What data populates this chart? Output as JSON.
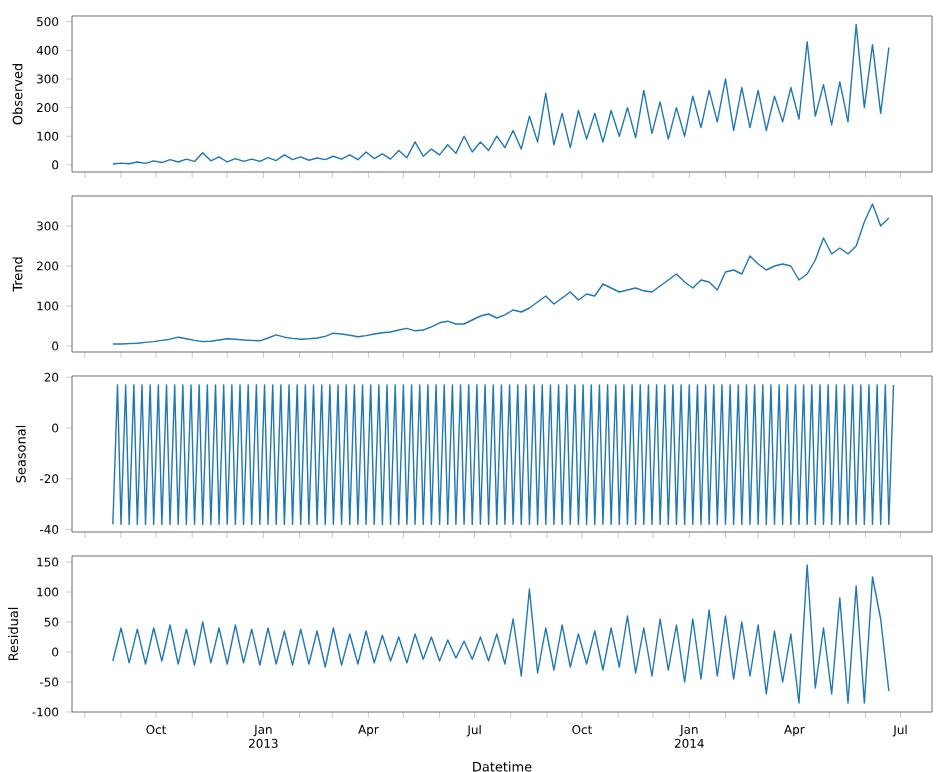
{
  "chart_data": [
    {
      "type": "line",
      "ylabel": "Observed",
      "tick_labels": "y",
      "xlim": [
        "2012-07-21",
        "2014-07-28"
      ],
      "ylim": [
        -25,
        520
      ],
      "yticks": [
        0,
        100,
        200,
        300,
        400,
        500
      ],
      "xticks": [
        "2012-08-01",
        "2012-09-01",
        "2012-10-01",
        "2012-11-01",
        "2012-12-01",
        "2013-01-01",
        "2013-02-01",
        "2013-03-01",
        "2013-04-01",
        "2013-05-01",
        "2013-06-01",
        "2013-07-01",
        "2013-08-01",
        "2013-09-01",
        "2013-10-01",
        "2013-11-01",
        "2013-12-01",
        "2014-01-01",
        "2014-02-01",
        "2014-03-01",
        "2014-04-01",
        "2014-05-01",
        "2014-06-01",
        "2014-07-01"
      ],
      "x": [
        "2012-08-25",
        "2012-09-01",
        "2012-09-08",
        "2012-09-15",
        "2012-09-22",
        "2012-09-29",
        "2012-10-06",
        "2012-10-13",
        "2012-10-20",
        "2012-10-27",
        "2012-11-03",
        "2012-11-10",
        "2012-11-17",
        "2012-11-24",
        "2012-12-01",
        "2012-12-08",
        "2012-12-15",
        "2012-12-22",
        "2012-12-29",
        "2013-01-05",
        "2013-01-12",
        "2013-01-19",
        "2013-01-26",
        "2013-02-02",
        "2013-02-09",
        "2013-02-16",
        "2013-02-23",
        "2013-03-02",
        "2013-03-09",
        "2013-03-16",
        "2013-03-23",
        "2013-03-30",
        "2013-04-06",
        "2013-04-13",
        "2013-04-20",
        "2013-04-27",
        "2013-05-04",
        "2013-05-11",
        "2013-05-18",
        "2013-05-25",
        "2013-06-01",
        "2013-06-08",
        "2013-06-15",
        "2013-06-22",
        "2013-06-29",
        "2013-07-06",
        "2013-07-13",
        "2013-07-20",
        "2013-07-27",
        "2013-08-03",
        "2013-08-10",
        "2013-08-17",
        "2013-08-24",
        "2013-08-31",
        "2013-09-07",
        "2013-09-14",
        "2013-09-21",
        "2013-09-28",
        "2013-10-05",
        "2013-10-12",
        "2013-10-19",
        "2013-10-26",
        "2013-11-02",
        "2013-11-09",
        "2013-11-16",
        "2013-11-23",
        "2013-11-30",
        "2013-12-07",
        "2013-12-14",
        "2013-12-21",
        "2013-12-28",
        "2014-01-04",
        "2014-01-11",
        "2014-01-18",
        "2014-01-25",
        "2014-02-01",
        "2014-02-08",
        "2014-02-15",
        "2014-02-22",
        "2014-03-01",
        "2014-03-08",
        "2014-03-15",
        "2014-03-22",
        "2014-03-29",
        "2014-04-05",
        "2014-04-12",
        "2014-04-19",
        "2014-04-26",
        "2014-05-03",
        "2014-05-10",
        "2014-05-17",
        "2014-05-24",
        "2014-05-31",
        "2014-06-07",
        "2014-06-14",
        "2014-06-21"
      ],
      "series": [
        {
          "color": "#1f77b4",
          "values": [
            3,
            6,
            4,
            10,
            5,
            14,
            8,
            18,
            10,
            20,
            12,
            42,
            14,
            28,
            10,
            22,
            12,
            20,
            12,
            25,
            15,
            35,
            18,
            28,
            16,
            24,
            18,
            30,
            20,
            35,
            18,
            45,
            22,
            38,
            20,
            50,
            25,
            80,
            30,
            55,
            35,
            70,
            40,
            100,
            45,
            80,
            50,
            100,
            60,
            120,
            55,
            170,
            80,
            250,
            70,
            180,
            60,
            190,
            90,
            180,
            80,
            190,
            100,
            200,
            95,
            260,
            110,
            220,
            90,
            200,
            100,
            240,
            130,
            260,
            150,
            300,
            120,
            270,
            130,
            260,
            120,
            240,
            150,
            270,
            160,
            430,
            170,
            280,
            140,
            290,
            150,
            490,
            200,
            420,
            180,
            410
          ]
        }
      ]
    },
    {
      "type": "line",
      "ylabel": "Trend",
      "tick_labels": "y",
      "xlim": [
        "2012-07-21",
        "2014-07-28"
      ],
      "ylim": [
        -15,
        375
      ],
      "yticks": [
        0,
        100,
        200,
        300
      ],
      "xticks": [
        "2012-08-01",
        "2012-09-01",
        "2012-10-01",
        "2012-11-01",
        "2012-12-01",
        "2013-01-01",
        "2013-02-01",
        "2013-03-01",
        "2013-04-01",
        "2013-05-01",
        "2013-06-01",
        "2013-07-01",
        "2013-08-01",
        "2013-09-01",
        "2013-10-01",
        "2013-11-01",
        "2013-12-01",
        "2014-01-01",
        "2014-02-01",
        "2014-03-01",
        "2014-04-01",
        "2014-05-01",
        "2014-06-01",
        "2014-07-01"
      ],
      "x": [
        "2012-08-25",
        "2012-09-01",
        "2012-09-08",
        "2012-09-15",
        "2012-09-22",
        "2012-09-29",
        "2012-10-06",
        "2012-10-13",
        "2012-10-20",
        "2012-10-27",
        "2012-11-03",
        "2012-11-10",
        "2012-11-17",
        "2012-11-24",
        "2012-12-01",
        "2012-12-08",
        "2012-12-15",
        "2012-12-22",
        "2012-12-29",
        "2013-01-05",
        "2013-01-12",
        "2013-01-19",
        "2013-01-26",
        "2013-02-02",
        "2013-02-09",
        "2013-02-16",
        "2013-02-23",
        "2013-03-02",
        "2013-03-09",
        "2013-03-16",
        "2013-03-23",
        "2013-03-30",
        "2013-04-06",
        "2013-04-13",
        "2013-04-20",
        "2013-04-27",
        "2013-05-04",
        "2013-05-11",
        "2013-05-18",
        "2013-05-25",
        "2013-06-01",
        "2013-06-08",
        "2013-06-15",
        "2013-06-22",
        "2013-06-29",
        "2013-07-06",
        "2013-07-13",
        "2013-07-20",
        "2013-07-27",
        "2013-08-03",
        "2013-08-10",
        "2013-08-17",
        "2013-08-24",
        "2013-08-31",
        "2013-09-07",
        "2013-09-14",
        "2013-09-21",
        "2013-09-28",
        "2013-10-05",
        "2013-10-12",
        "2013-10-19",
        "2013-10-26",
        "2013-11-02",
        "2013-11-09",
        "2013-11-16",
        "2013-11-23",
        "2013-11-30",
        "2013-12-07",
        "2013-12-14",
        "2013-12-21",
        "2013-12-28",
        "2014-01-04",
        "2014-01-11",
        "2014-01-18",
        "2014-01-25",
        "2014-02-01",
        "2014-02-08",
        "2014-02-15",
        "2014-02-22",
        "2014-03-01",
        "2014-03-08",
        "2014-03-15",
        "2014-03-22",
        "2014-03-29",
        "2014-04-05",
        "2014-04-12",
        "2014-04-19",
        "2014-04-26",
        "2014-05-03",
        "2014-05-10",
        "2014-05-17",
        "2014-05-24",
        "2014-05-31",
        "2014-06-07",
        "2014-06-14",
        "2014-06-21"
      ],
      "series": [
        {
          "color": "#1f77b4",
          "values": [
            5,
            5,
            6,
            7,
            9,
            11,
            14,
            17,
            22,
            18,
            14,
            11,
            12,
            15,
            18,
            17,
            15,
            14,
            13,
            20,
            28,
            22,
            19,
            17,
            18,
            20,
            24,
            32,
            30,
            27,
            23,
            26,
            30,
            33,
            35,
            40,
            44,
            38,
            40,
            48,
            58,
            62,
            55,
            55,
            65,
            75,
            80,
            70,
            78,
            90,
            85,
            95,
            110,
            125,
            105,
            120,
            135,
            115,
            130,
            125,
            155,
            145,
            135,
            140,
            145,
            138,
            135,
            150,
            165,
            180,
            160,
            145,
            165,
            160,
            140,
            185,
            190,
            180,
            225,
            205,
            190,
            200,
            205,
            200,
            165,
            180,
            215,
            270,
            230,
            245,
            230,
            250,
            310,
            355,
            300,
            320
          ]
        }
      ]
    },
    {
      "type": "line",
      "ylabel": "Seasonal",
      "tick_labels": "y",
      "xlim": [
        "2012-07-21",
        "2014-07-28"
      ],
      "ylim": [
        -41,
        20.5
      ],
      "yticks": [
        -40,
        -20,
        0,
        20
      ],
      "xticks": [
        "2012-08-01",
        "2012-09-01",
        "2012-10-01",
        "2012-11-01",
        "2012-12-01",
        "2013-01-01",
        "2013-02-01",
        "2013-03-01",
        "2013-04-01",
        "2013-05-01",
        "2013-06-01",
        "2013-07-01",
        "2013-08-01",
        "2013-09-01",
        "2013-10-01",
        "2013-11-01",
        "2013-12-01",
        "2014-01-01",
        "2014-02-01",
        "2014-03-01",
        "2014-04-01",
        "2014-05-01",
        "2014-06-01",
        "2014-07-01"
      ],
      "x": [
        "2012-08-25",
        "2012-08-29",
        "2012-09-01",
        "2012-09-05",
        "2012-09-08",
        "2012-09-12",
        "2012-09-15",
        "2012-09-19",
        "2012-09-22",
        "2012-09-26",
        "2012-09-29",
        "2012-10-03",
        "2012-10-06",
        "2012-10-10",
        "2012-10-13",
        "2012-10-17",
        "2012-10-20",
        "2012-10-24",
        "2012-10-27",
        "2012-10-31",
        "2012-11-03",
        "2012-11-07",
        "2012-11-10",
        "2012-11-14",
        "2012-11-17",
        "2012-11-21",
        "2012-11-24",
        "2012-11-28",
        "2012-12-01",
        "2012-12-05",
        "2012-12-08",
        "2012-12-12",
        "2012-12-15",
        "2012-12-19",
        "2012-12-22",
        "2012-12-26",
        "2012-12-29",
        "2013-01-02",
        "2013-01-05",
        "2013-01-09",
        "2013-01-12",
        "2013-01-16",
        "2013-01-19",
        "2013-01-23",
        "2013-01-26",
        "2013-01-30",
        "2013-02-02",
        "2013-02-06",
        "2013-02-09",
        "2013-02-13",
        "2013-02-16",
        "2013-02-20",
        "2013-02-23",
        "2013-02-27",
        "2013-03-02",
        "2013-03-06",
        "2013-03-09",
        "2013-03-13",
        "2013-03-16",
        "2013-03-20",
        "2013-03-23",
        "2013-03-27",
        "2013-03-30",
        "2013-04-03",
        "2013-04-06",
        "2013-04-10",
        "2013-04-13",
        "2013-04-17",
        "2013-04-20",
        "2013-04-24",
        "2013-04-27",
        "2013-05-01",
        "2013-05-04",
        "2013-05-08",
        "2013-05-11",
        "2013-05-15",
        "2013-05-18",
        "2013-05-22",
        "2013-05-25",
        "2013-05-29",
        "2013-06-01",
        "2013-06-05",
        "2013-06-08",
        "2013-06-12",
        "2013-06-15",
        "2013-06-19",
        "2013-06-22",
        "2013-06-26",
        "2013-06-29",
        "2013-07-03",
        "2013-07-06",
        "2013-07-10",
        "2013-07-13",
        "2013-07-17",
        "2013-07-20",
        "2013-07-24",
        "2013-07-27",
        "2013-07-31",
        "2013-08-03",
        "2013-08-07",
        "2013-08-10",
        "2013-08-14",
        "2013-08-17",
        "2013-08-21",
        "2013-08-24",
        "2013-08-28",
        "2013-08-31",
        "2013-09-04",
        "2013-09-07",
        "2013-09-11",
        "2013-09-14",
        "2013-09-18",
        "2013-09-21",
        "2013-09-25",
        "2013-09-28",
        "2013-10-02",
        "2013-10-05",
        "2013-10-09",
        "2013-10-12",
        "2013-10-16",
        "2013-10-19",
        "2013-10-23",
        "2013-10-26",
        "2013-10-30",
        "2013-11-02",
        "2013-11-06",
        "2013-11-09",
        "2013-11-13",
        "2013-11-16",
        "2013-11-20",
        "2013-11-23",
        "2013-11-27",
        "2013-11-30",
        "2013-12-04",
        "2013-12-07",
        "2013-12-11",
        "2013-12-14",
        "2013-12-18",
        "2013-12-21",
        "2013-12-25",
        "2013-12-28",
        "2014-01-01",
        "2014-01-04",
        "2014-01-08",
        "2014-01-11",
        "2014-01-15",
        "2014-01-18",
        "2014-01-22",
        "2014-01-25",
        "2014-01-29",
        "2014-02-01",
        "2014-02-05",
        "2014-02-08",
        "2014-02-12",
        "2014-02-15",
        "2014-02-19",
        "2014-02-22",
        "2014-02-26",
        "2014-03-01",
        "2014-03-05",
        "2014-03-08",
        "2014-03-12",
        "2014-03-15",
        "2014-03-19",
        "2014-03-22",
        "2014-03-26",
        "2014-03-29",
        "2014-04-02",
        "2014-04-05",
        "2014-04-09",
        "2014-04-12",
        "2014-04-16",
        "2014-04-19",
        "2014-04-23",
        "2014-04-26",
        "2014-04-30",
        "2014-05-03",
        "2014-05-07",
        "2014-05-10",
        "2014-05-14",
        "2014-05-17",
        "2014-05-21",
        "2014-05-24",
        "2014-05-28",
        "2014-05-31",
        "2014-06-04",
        "2014-06-07",
        "2014-06-11",
        "2014-06-14",
        "2014-06-18",
        "2014-06-21",
        "2014-06-25"
      ],
      "series": [
        {
          "color": "#1f77b4",
          "values": [
            -38,
            17,
            -38,
            17,
            -38,
            17,
            -38,
            17,
            -38,
            17,
            -38,
            17,
            -38,
            17,
            -38,
            17,
            -38,
            17,
            -38,
            17,
            -38,
            17,
            -38,
            17,
            -38,
            17,
            -38,
            17,
            -38,
            17,
            -38,
            17,
            -38,
            17,
            -38,
            17,
            -38,
            17,
            -38,
            17,
            -38,
            17,
            -38,
            17,
            -38,
            17,
            -38,
            17,
            -38,
            17,
            -38,
            17,
            -38,
            17,
            -38,
            17,
            -38,
            17,
            -38,
            17,
            -38,
            17,
            -38,
            17,
            -38,
            17,
            -38,
            17,
            -38,
            17,
            -38,
            17,
            -38,
            17,
            -38,
            17,
            -38,
            17,
            -38,
            17,
            -38,
            17,
            -38,
            17,
            -38,
            17,
            -38,
            17,
            -38,
            17,
            -38,
            17,
            -38,
            17,
            -38,
            17,
            -38,
            17,
            -38,
            17,
            -38,
            17,
            -38,
            17,
            -38,
            17,
            -38,
            17,
            -38,
            17,
            -38,
            17,
            -38,
            17,
            -38,
            17,
            -38,
            17,
            -38,
            17,
            -38,
            17,
            -38,
            17,
            -38,
            17,
            -38,
            17,
            -38,
            17,
            -38,
            17,
            -38,
            17,
            -38,
            17,
            -38,
            17,
            -38,
            17,
            -38,
            17,
            -38,
            17,
            -38,
            17,
            -38,
            17,
            -38,
            17,
            -38,
            17,
            -38,
            17,
            -38,
            17,
            -38,
            17,
            -38,
            17,
            -38,
            17,
            -38,
            17,
            -38,
            17,
            -38,
            17,
            -38,
            17,
            -38,
            17,
            -38,
            17,
            -38,
            17,
            -38,
            17,
            -38,
            17,
            -38,
            17,
            -38,
            17,
            -38,
            17,
            -38,
            17,
            -38,
            17,
            -38,
            17
          ]
        }
      ]
    },
    {
      "type": "line",
      "ylabel": "Residual",
      "xlabel": "Datetime",
      "xlim": [
        "2012-07-21",
        "2014-07-28"
      ],
      "ylim": [
        -100,
        160
      ],
      "yticks": [
        -100,
        -50,
        0,
        50,
        100,
        150
      ],
      "xticks": [
        {
          "value": "2012-08-01",
          "label": null
        },
        {
          "value": "2012-09-01",
          "label": null
        },
        {
          "value": "2012-10-01",
          "label": "Oct"
        },
        {
          "value": "2012-11-01",
          "label": null
        },
        {
          "value": "2012-12-01",
          "label": null
        },
        {
          "value": "2013-01-01",
          "label": "Jan 2013"
        },
        {
          "value": "2013-02-01",
          "label": null
        },
        {
          "value": "2013-03-01",
          "label": null
        },
        {
          "value": "2013-04-01",
          "label": "Apr"
        },
        {
          "value": "2013-05-01",
          "label": null
        },
        {
          "value": "2013-06-01",
          "label": null
        },
        {
          "value": "2013-07-01",
          "label": "Jul"
        },
        {
          "value": "2013-08-01",
          "label": null
        },
        {
          "value": "2013-09-01",
          "label": null
        },
        {
          "value": "2013-10-01",
          "label": "Oct"
        },
        {
          "value": "2013-11-01",
          "label": null
        },
        {
          "value": "2013-12-01",
          "label": null
        },
        {
          "value": "2014-01-01",
          "label": "Jan 2014"
        },
        {
          "value": "2014-02-01",
          "label": null
        },
        {
          "value": "2014-03-01",
          "label": null
        },
        {
          "value": "2014-04-01",
          "label": "Apr"
        },
        {
          "value": "2014-05-01",
          "label": null
        },
        {
          "value": "2014-06-01",
          "label": null
        },
        {
          "value": "2014-07-01",
          "label": "Jul"
        }
      ],
      "x": [
        "2012-08-25",
        "2012-09-01",
        "2012-09-08",
        "2012-09-15",
        "2012-09-22",
        "2012-09-29",
        "2012-10-06",
        "2012-10-13",
        "2012-10-20",
        "2012-10-27",
        "2012-11-03",
        "2012-11-10",
        "2012-11-17",
        "2012-11-24",
        "2012-12-01",
        "2012-12-08",
        "2012-12-15",
        "2012-12-22",
        "2012-12-29",
        "2013-01-05",
        "2013-01-12",
        "2013-01-19",
        "2013-01-26",
        "2013-02-02",
        "2013-02-09",
        "2013-02-16",
        "2013-02-23",
        "2013-03-02",
        "2013-03-09",
        "2013-03-16",
        "2013-03-23",
        "2013-03-30",
        "2013-04-06",
        "2013-04-13",
        "2013-04-20",
        "2013-04-27",
        "2013-05-04",
        "2013-05-11",
        "2013-05-18",
        "2013-05-25",
        "2013-06-01",
        "2013-06-08",
        "2013-06-15",
        "2013-06-22",
        "2013-06-29",
        "2013-07-06",
        "2013-07-13",
        "2013-07-20",
        "2013-07-27",
        "2013-08-03",
        "2013-08-10",
        "2013-08-17",
        "2013-08-24",
        "2013-08-31",
        "2013-09-07",
        "2013-09-14",
        "2013-09-21",
        "2013-09-28",
        "2013-10-05",
        "2013-10-12",
        "2013-10-19",
        "2013-10-26",
        "2013-11-02",
        "2013-11-09",
        "2013-11-16",
        "2013-11-23",
        "2013-11-30",
        "2013-12-07",
        "2013-12-14",
        "2013-12-21",
        "2013-12-28",
        "2014-01-04",
        "2014-01-11",
        "2014-01-18",
        "2014-01-25",
        "2014-02-01",
        "2014-02-08",
        "2014-02-15",
        "2014-02-22",
        "2014-03-01",
        "2014-03-08",
        "2014-03-15",
        "2014-03-22",
        "2014-03-29",
        "2014-04-05",
        "2014-04-12",
        "2014-04-19",
        "2014-04-26",
        "2014-05-03",
        "2014-05-10",
        "2014-05-17",
        "2014-05-24",
        "2014-05-31",
        "2014-06-07",
        "2014-06-14",
        "2014-06-21"
      ],
      "series": [
        {
          "color": "#1f77b4",
          "values": [
            -15,
            40,
            -18,
            38,
            -20,
            40,
            -15,
            45,
            -20,
            38,
            -22,
            50,
            -18,
            40,
            -20,
            45,
            -18,
            38,
            -22,
            40,
            -20,
            35,
            -22,
            38,
            -20,
            35,
            -25,
            40,
            -22,
            30,
            -20,
            35,
            -18,
            28,
            -15,
            25,
            -18,
            30,
            -12,
            25,
            -15,
            20,
            -10,
            18,
            -12,
            25,
            -15,
            30,
            -20,
            55,
            -40,
            105,
            -35,
            40,
            -30,
            45,
            -25,
            30,
            -20,
            35,
            -30,
            40,
            -25,
            60,
            -35,
            40,
            -40,
            55,
            -30,
            45,
            -50,
            55,
            -45,
            70,
            -40,
            60,
            -45,
            50,
            -40,
            45,
            -70,
            35,
            -50,
            30,
            -85,
            145,
            -60,
            40,
            -70,
            90,
            -85,
            110,
            -85,
            125,
            55,
            -65
          ]
        }
      ]
    }
  ]
}
